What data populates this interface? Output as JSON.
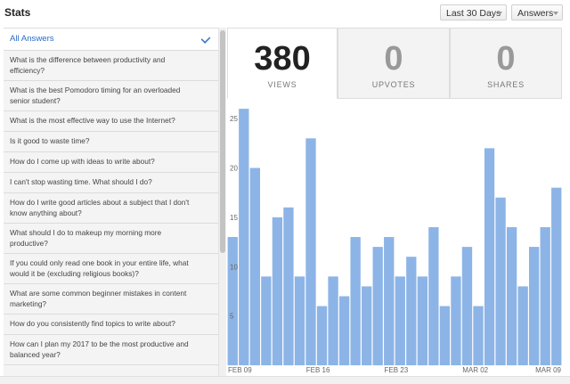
{
  "header": {
    "title": "Stats"
  },
  "filters": {
    "range": {
      "selected": "Last 30 Days"
    },
    "type": {
      "selected": "Answers"
    }
  },
  "sidebar": {
    "items": [
      {
        "label": "All Answers",
        "selected": true
      },
      {
        "label": "What is the difference between productivity and efficiency?"
      },
      {
        "label": "What is the best Pomodoro timing for an overloaded senior student?"
      },
      {
        "label": "What is the most effective way to use the Internet?"
      },
      {
        "label": "Is it good to waste time?"
      },
      {
        "label": "How do I come up with ideas to write about?"
      },
      {
        "label": "I can't stop wasting time. What should I do?"
      },
      {
        "label": "How do I write good articles about a subject that I don't know anything about?"
      },
      {
        "label": "What should I do to makeup my morning more productive?"
      },
      {
        "label": "If you could only read one book in your entire life, what would it be (excluding religious books)?"
      },
      {
        "label": "What are some common beginner mistakes in content marketing?"
      },
      {
        "label": "How do you consistently find topics to write about?"
      },
      {
        "label": "How can I plan my 2017 to be the most productive and balanced year?"
      }
    ]
  },
  "stats": {
    "views": {
      "value": "380",
      "label": "VIEWS"
    },
    "upvotes": {
      "value": "0",
      "label": "UPVOTES"
    },
    "shares": {
      "value": "0",
      "label": "SHARES"
    }
  },
  "chart_data": {
    "type": "bar",
    "bar_color": "#8db4e6",
    "ylim": [
      0,
      27
    ],
    "y_ticks": [
      5,
      10,
      15,
      20,
      25
    ],
    "x_tick_labels": [
      {
        "label": "FEB 09",
        "index": 0
      },
      {
        "label": "FEB 16",
        "index": 7
      },
      {
        "label": "FEB 23",
        "index": 14
      },
      {
        "label": "MAR 02",
        "index": 21
      },
      {
        "label": "MAR 09",
        "index": 28
      }
    ],
    "values": [
      13,
      26,
      20,
      9,
      15,
      16,
      9,
      23,
      6,
      9,
      7,
      13,
      8,
      12,
      13,
      9,
      11,
      9,
      14,
      6,
      9,
      12,
      6,
      22,
      17,
      14,
      8,
      12,
      14,
      18
    ]
  }
}
